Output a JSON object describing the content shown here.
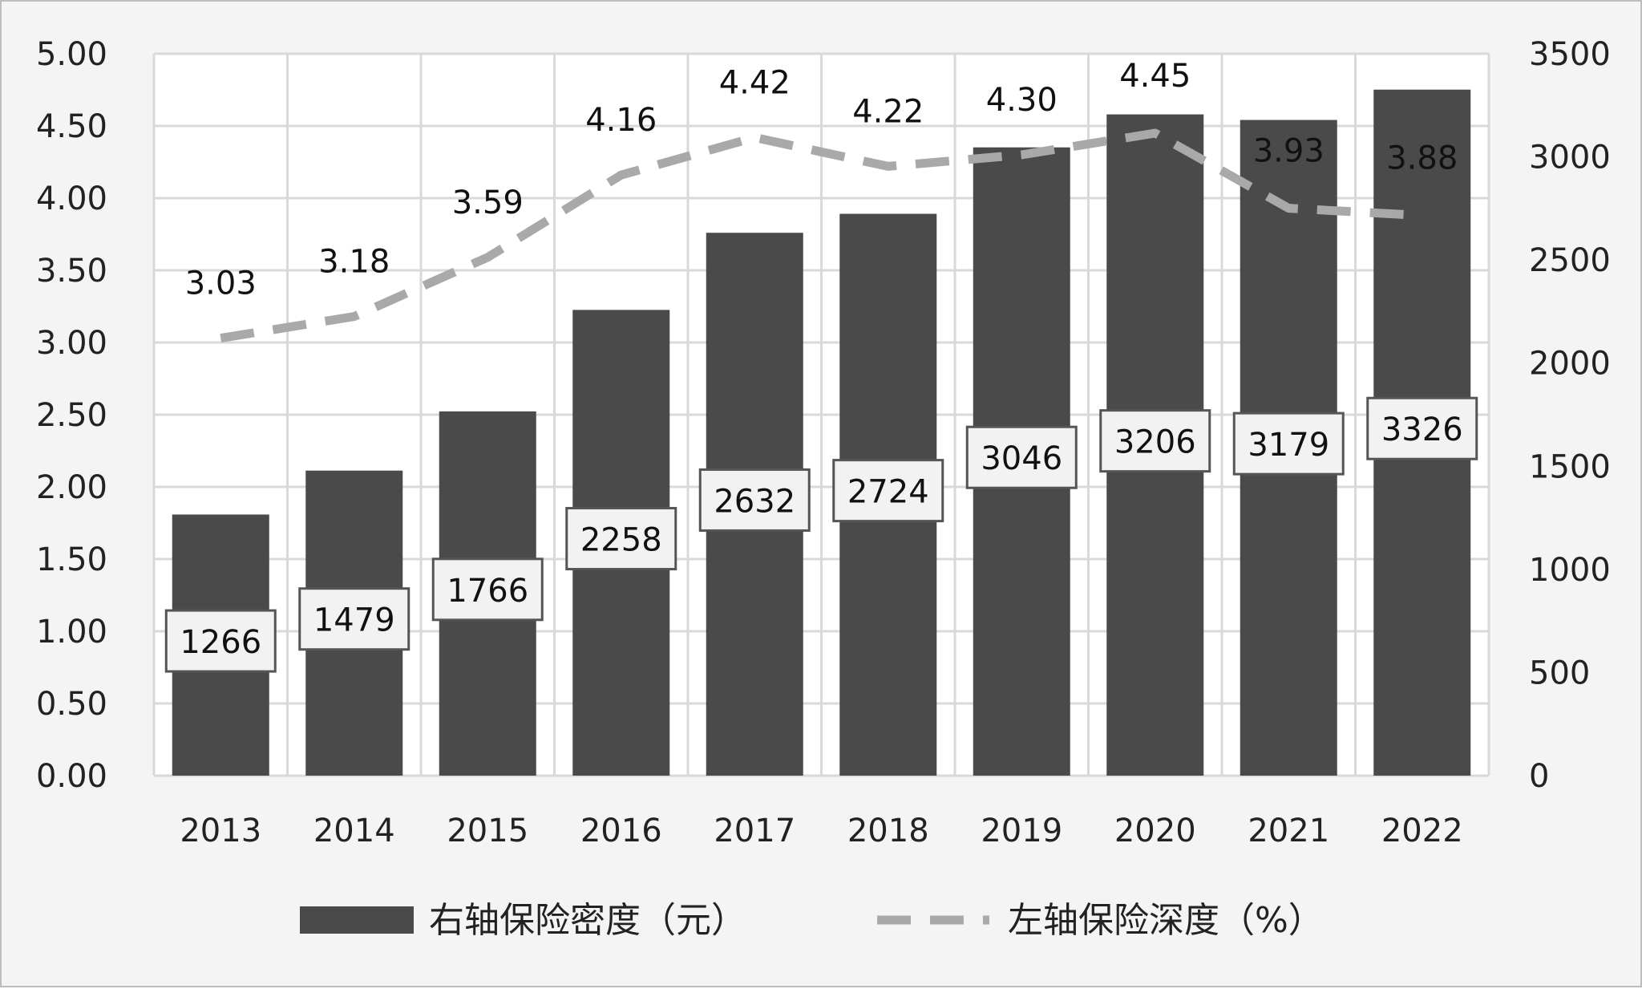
{
  "chart_data": {
    "type": "bar",
    "categories": [
      "2013",
      "2014",
      "2015",
      "2016",
      "2017",
      "2018",
      "2019",
      "2020",
      "2021",
      "2022"
    ],
    "series": [
      {
        "name": "右轴保险密度（元）",
        "kind": "bar",
        "axis": "right",
        "values": [
          1266,
          1479,
          1766,
          2258,
          2632,
          2724,
          3046,
          3206,
          3179,
          3326
        ],
        "color": "#4a4a4a"
      },
      {
        "name": "左轴保险深度（%）",
        "kind": "line",
        "style": "dashed",
        "axis": "left",
        "values": [
          3.03,
          3.18,
          3.59,
          4.16,
          4.42,
          4.22,
          4.3,
          4.45,
          3.93,
          3.88
        ],
        "color": "#a9a9a9"
      }
    ],
    "left_axis": {
      "ylim": [
        0,
        5
      ],
      "ticks": [
        "0.00",
        "0.50",
        "1.00",
        "1.50",
        "2.00",
        "2.50",
        "3.00",
        "3.50",
        "4.00",
        "4.50",
        "5.00"
      ]
    },
    "right_axis": {
      "ylim": [
        0,
        3500
      ],
      "ticks": [
        "0",
        "500",
        "1000",
        "1500",
        "2000",
        "2500",
        "3000",
        "3500"
      ]
    },
    "line_labels": [
      "3.03",
      "3.18",
      "3.59",
      "4.16",
      "4.42",
      "4.22",
      "4.30",
      "4.45",
      "3.93",
      "3.88"
    ],
    "bar_labels": [
      "1266",
      "1479",
      "1766",
      "2258",
      "2632",
      "2724",
      "3046",
      "3206",
      "3179",
      "3326"
    ],
    "grid": true,
    "legend_position": "bottom"
  }
}
